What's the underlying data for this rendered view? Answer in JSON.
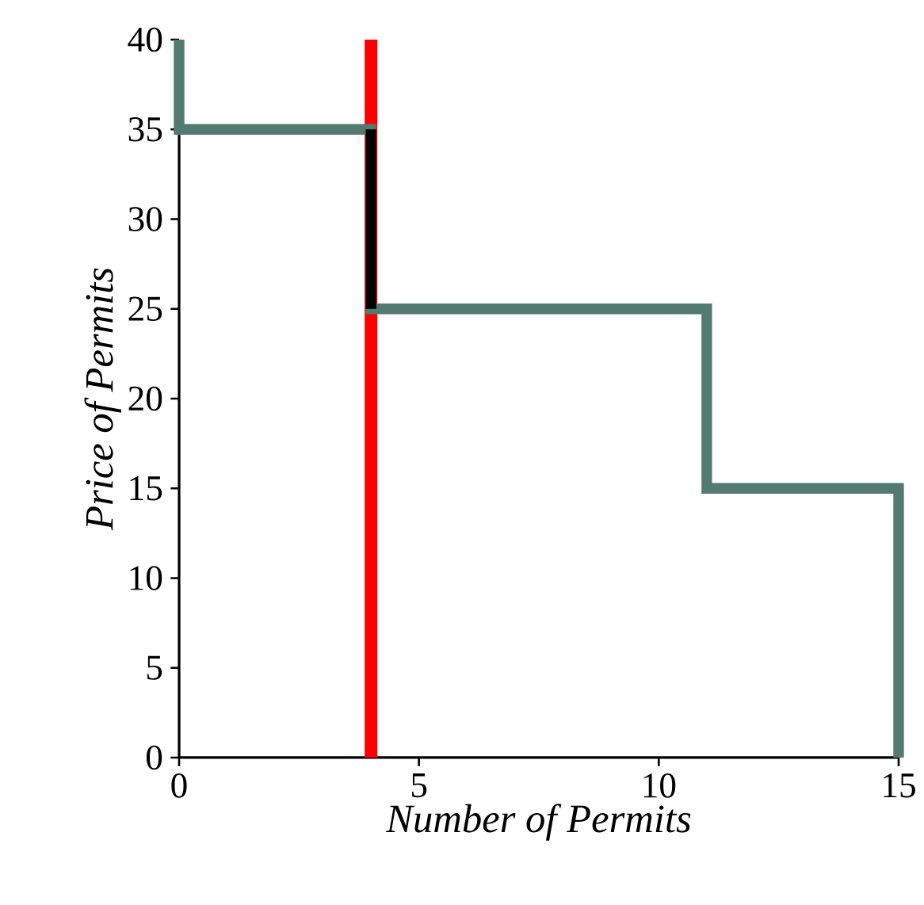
{
  "chart_data": {
    "type": "line",
    "xlabel": "*Number of Permits*",
    "ylabel": "*Price of Permits*",
    "series": [
      {
        "color": "#537a6e",
        "x": [
          0,
          0,
          4,
          4,
          11,
          11,
          15,
          15
        ],
        "values": [
          40,
          35,
          35,
          25,
          25,
          15,
          15,
          0
        ]
      },
      {
        "color": "#000000",
        "x": [
          4,
          4
        ],
        "values": [
          25,
          35
        ]
      }
    ],
    "ref_lines": [
      {
        "axis": "x",
        "value": 4,
        "color": "#ff0000"
      }
    ],
    "xlim": [
      0,
      15
    ],
    "ylim": [
      0,
      40
    ],
    "xticks": [
      0,
      5,
      10,
      15
    ],
    "yticks": [
      0,
      5,
      10,
      15,
      20,
      25,
      30,
      35,
      40
    ],
    "marker": "none",
    "line_style": "solid"
  }
}
